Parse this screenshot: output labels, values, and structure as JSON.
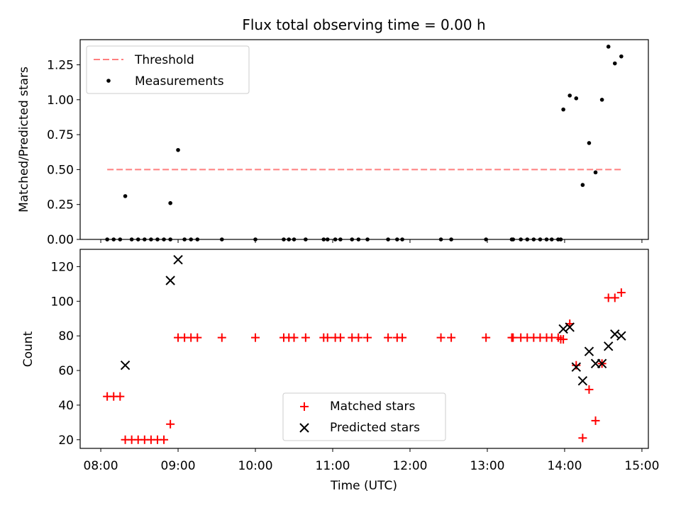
{
  "title": "Flux total observing time = 0.00 h",
  "chart_data": [
    {
      "type": "scatter",
      "panel": "top",
      "title": "Flux total observing time = 0.00 h",
      "xlabel": "",
      "ylabel": "Matched/Predicted stars",
      "xlim": [
        "07:44",
        "15:05"
      ],
      "ylim": [
        0,
        1.43
      ],
      "yticks": [
        0.0,
        0.25,
        0.5,
        0.75,
        1.0,
        1.25
      ],
      "ytick_labels": [
        "0.00",
        "0.25",
        "0.50",
        "0.75",
        "1.00",
        "1.25"
      ],
      "grid": false,
      "legend_position": "top-left",
      "series": [
        {
          "name": "Threshold",
          "style": "dashed-line",
          "color": "#ff7f7f",
          "points": [
            [
              "08:05",
              0.5
            ],
            [
              "14:45",
              0.5
            ]
          ]
        },
        {
          "name": "Measurements",
          "style": "dot",
          "color": "#000000",
          "points": [
            [
              "08:05",
              0
            ],
            [
              "08:10",
              0
            ],
            [
              "08:15",
              0
            ],
            [
              "08:19",
              0.31
            ],
            [
              "08:24",
              0
            ],
            [
              "08:29",
              0
            ],
            [
              "08:34",
              0
            ],
            [
              "08:39",
              0
            ],
            [
              "08:44",
              0
            ],
            [
              "08:49",
              0
            ],
            [
              "08:54",
              0
            ],
            [
              "08:54",
              0.26
            ],
            [
              "09:00",
              0.64
            ],
            [
              "09:05",
              0
            ],
            [
              "09:10",
              0
            ],
            [
              "09:15",
              0
            ],
            [
              "09:34",
              0
            ],
            [
              "10:00",
              0
            ],
            [
              "10:22",
              0
            ],
            [
              "10:26",
              0
            ],
            [
              "10:30",
              0
            ],
            [
              "10:39",
              0
            ],
            [
              "10:53",
              0
            ],
            [
              "10:56",
              0
            ],
            [
              "11:02",
              0
            ],
            [
              "11:06",
              0
            ],
            [
              "11:15",
              0
            ],
            [
              "11:20",
              0
            ],
            [
              "11:27",
              0
            ],
            [
              "11:43",
              0
            ],
            [
              "11:50",
              0
            ],
            [
              "11:54",
              0
            ],
            [
              "12:24",
              0
            ],
            [
              "12:32",
              0
            ],
            [
              "12:59",
              0
            ],
            [
              "13:19",
              0
            ],
            [
              "13:20",
              0
            ],
            [
              "13:26",
              0
            ],
            [
              "13:31",
              0
            ],
            [
              "13:36",
              0
            ],
            [
              "13:41",
              0
            ],
            [
              "13:46",
              0
            ],
            [
              "13:50",
              0
            ],
            [
              "13:55",
              0
            ],
            [
              "13:57",
              0
            ],
            [
              "13:59",
              0.93
            ],
            [
              "14:04",
              1.03
            ],
            [
              "14:09",
              1.01
            ],
            [
              "14:14",
              0.39
            ],
            [
              "14:19",
              0.69
            ],
            [
              "14:24",
              0.48
            ],
            [
              "14:29",
              1.0
            ],
            [
              "14:34",
              1.38
            ],
            [
              "14:39",
              1.26
            ],
            [
              "14:44",
              1.31
            ]
          ]
        }
      ]
    },
    {
      "type": "scatter",
      "panel": "bottom",
      "xlabel": "Time (UTC)",
      "ylabel": "Count",
      "xlim": [
        "07:44",
        "15:05"
      ],
      "ylim": [
        15,
        130
      ],
      "xticks": [
        "08:00",
        "09:00",
        "10:00",
        "11:00",
        "12:00",
        "13:00",
        "14:00",
        "15:00"
      ],
      "xtick_labels": [
        "08:00",
        "09:00",
        "10:00",
        "11:00",
        "12:00",
        "13:00",
        "14:00",
        "15:00"
      ],
      "yticks": [
        20,
        40,
        60,
        80,
        100,
        120
      ],
      "ytick_labels": [
        "20",
        "40",
        "60",
        "80",
        "100",
        "120"
      ],
      "grid": false,
      "legend_position": "lower-center",
      "series": [
        {
          "name": "Matched stars",
          "marker": "plus",
          "color": "#ff0000",
          "points": [
            [
              "08:05",
              45
            ],
            [
              "08:10",
              45
            ],
            [
              "08:15",
              45
            ],
            [
              "08:19",
              20
            ],
            [
              "08:24",
              20
            ],
            [
              "08:29",
              20
            ],
            [
              "08:34",
              20
            ],
            [
              "08:39",
              20
            ],
            [
              "08:44",
              20
            ],
            [
              "08:49",
              20
            ],
            [
              "08:54",
              29
            ],
            [
              "09:00",
              79
            ],
            [
              "09:05",
              79
            ],
            [
              "09:10",
              79
            ],
            [
              "09:15",
              79
            ],
            [
              "09:34",
              79
            ],
            [
              "10:00",
              79
            ],
            [
              "10:22",
              79
            ],
            [
              "10:26",
              79
            ],
            [
              "10:30",
              79
            ],
            [
              "10:39",
              79
            ],
            [
              "10:53",
              79
            ],
            [
              "10:56",
              79
            ],
            [
              "11:02",
              79
            ],
            [
              "11:06",
              79
            ],
            [
              "11:15",
              79
            ],
            [
              "11:20",
              79
            ],
            [
              "11:27",
              79
            ],
            [
              "11:43",
              79
            ],
            [
              "11:50",
              79
            ],
            [
              "11:54",
              79
            ],
            [
              "12:24",
              79
            ],
            [
              "12:32",
              79
            ],
            [
              "12:59",
              79
            ],
            [
              "13:19",
              79
            ],
            [
              "13:20",
              79
            ],
            [
              "13:26",
              79
            ],
            [
              "13:31",
              79
            ],
            [
              "13:36",
              79
            ],
            [
              "13:41",
              79
            ],
            [
              "13:46",
              79
            ],
            [
              "13:50",
              79
            ],
            [
              "13:55",
              79
            ],
            [
              "13:57",
              78
            ],
            [
              "13:59",
              78
            ],
            [
              "14:04",
              87
            ],
            [
              "14:09",
              63
            ],
            [
              "14:14",
              21
            ],
            [
              "14:19",
              49
            ],
            [
              "14:24",
              31
            ],
            [
              "14:29",
              64
            ],
            [
              "14:34",
              102
            ],
            [
              "14:39",
              102
            ],
            [
              "14:44",
              105
            ]
          ]
        },
        {
          "name": "Predicted stars",
          "marker": "x",
          "color": "#000000",
          "points": [
            [
              "08:19",
              63
            ],
            [
              "08:54",
              112
            ],
            [
              "09:00",
              124
            ],
            [
              "13:59",
              84
            ],
            [
              "14:04",
              85
            ],
            [
              "14:09",
              62
            ],
            [
              "14:14",
              54
            ],
            [
              "14:19",
              71
            ],
            [
              "14:24",
              64
            ],
            [
              "14:29",
              64
            ],
            [
              "14:34",
              74
            ],
            [
              "14:39",
              81
            ],
            [
              "14:44",
              80
            ]
          ]
        }
      ]
    }
  ]
}
